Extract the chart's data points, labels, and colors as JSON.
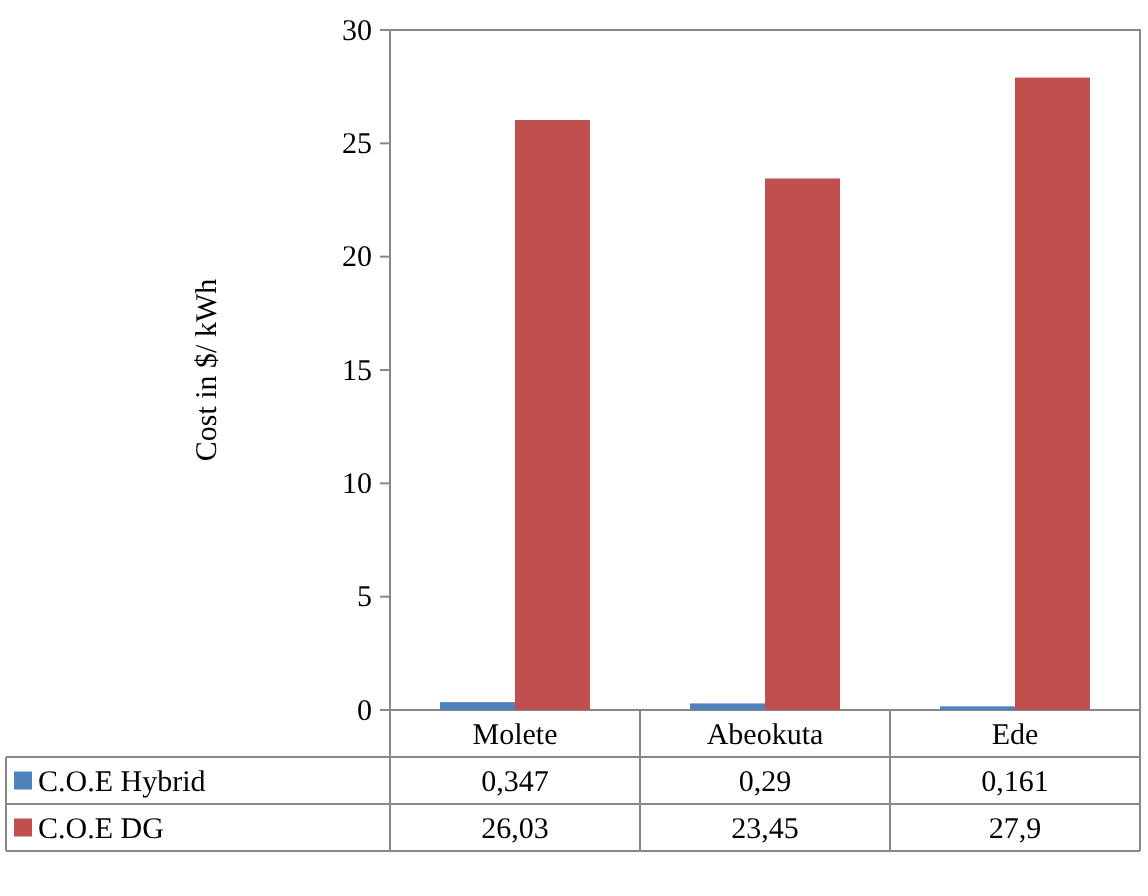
{
  "chart_data": {
    "type": "bar",
    "ylabel": "Cost in $/ kWh",
    "categories": [
      "Molete",
      "Abeokuta",
      "Ede"
    ],
    "series": [
      {
        "name": "C.O.E Hybrid",
        "color": "#4f81bd",
        "values": [
          0.347,
          0.29,
          0.161
        ],
        "value_labels": [
          "0,347",
          "0,29",
          "0,161"
        ]
      },
      {
        "name": "C.O.E DG",
        "color": "#c0504d",
        "values": [
          26.03,
          23.45,
          27.9
        ],
        "value_labels": [
          "26,03",
          "23,45",
          "27,9"
        ]
      }
    ],
    "ylim": [
      0,
      30
    ],
    "yticks": [
      0,
      5,
      10,
      15,
      20,
      25,
      30
    ],
    "grid": false,
    "legend": "bottom"
  }
}
